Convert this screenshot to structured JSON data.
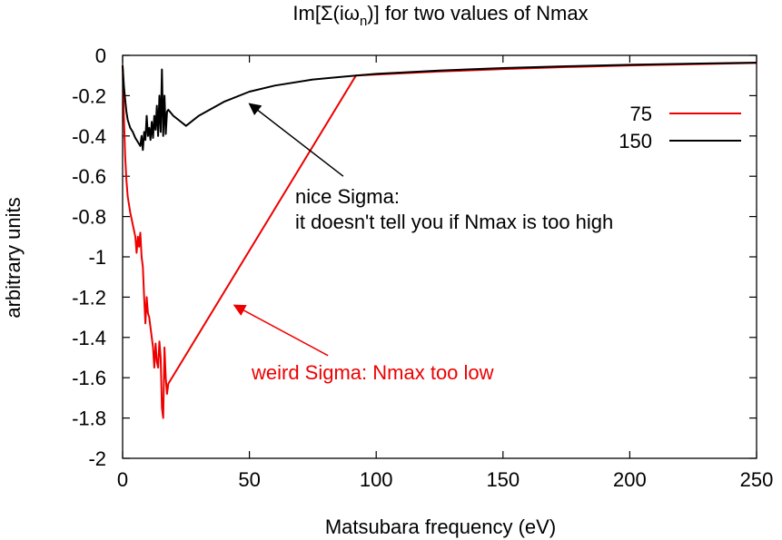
{
  "chart_data": {
    "type": "line",
    "title_prefix": "Im[Σ(iω",
    "title_sub": "n",
    "title_suffix": ")] for two values of Nmax",
    "xlabel": "Matsubara frequency (eV)",
    "ylabel": "arbitrary units",
    "xlim": [
      0,
      250
    ],
    "ylim": [
      -2,
      0
    ],
    "xticks": [
      0,
      50,
      100,
      150,
      200,
      250
    ],
    "yticks": [
      0,
      -0.2,
      -0.4,
      -0.6,
      -0.8,
      -1,
      -1.2,
      -1.4,
      -1.6,
      -1.8,
      -2
    ],
    "grid": false,
    "legend_position": "top-right",
    "series": [
      {
        "name": "75",
        "color": "#ee0000",
        "x": [
          0,
          0.5,
          1,
          1.5,
          2,
          3,
          4,
          5,
          5.5,
          6,
          6.5,
          7,
          7.5,
          8,
          8.5,
          9,
          9.5,
          10,
          10.5,
          11,
          11.5,
          12,
          12.5,
          13,
          13.5,
          14,
          14.5,
          15,
          15.5,
          16,
          16.5,
          17,
          17.5,
          18,
          92,
          100,
          125,
          150,
          175,
          200,
          225,
          250
        ],
        "y": [
          -0.05,
          -0.3,
          -0.5,
          -0.62,
          -0.7,
          -0.78,
          -0.84,
          -0.9,
          -0.98,
          -0.9,
          -0.95,
          -0.88,
          -1.0,
          -1.05,
          -1.2,
          -1.33,
          -1.2,
          -1.28,
          -1.3,
          -1.35,
          -1.4,
          -1.45,
          -1.55,
          -1.43,
          -1.52,
          -1.55,
          -1.42,
          -1.5,
          -1.75,
          -1.8,
          -1.45,
          -1.6,
          -1.68,
          -1.63,
          -0.1,
          -0.095,
          -0.08,
          -0.068,
          -0.058,
          -0.05,
          -0.044,
          -0.038
        ]
      },
      {
        "name": "150",
        "color": "#000000",
        "x": [
          0,
          0.5,
          1,
          1.5,
          2,
          3,
          4,
          5,
          6,
          7,
          7.5,
          8,
          8.5,
          9,
          9.5,
          10,
          10.5,
          11,
          11.5,
          12,
          12.5,
          13,
          13.5,
          14,
          14.5,
          15,
          15.5,
          16,
          16.5,
          17,
          17.5,
          18,
          20,
          22,
          25,
          30,
          40,
          50,
          60,
          75,
          92,
          100,
          125,
          150,
          175,
          200,
          225,
          250
        ],
        "y": [
          -0.05,
          -0.15,
          -0.22,
          -0.28,
          -0.32,
          -0.36,
          -0.38,
          -0.41,
          -0.43,
          -0.45,
          -0.4,
          -0.47,
          -0.38,
          -0.42,
          -0.3,
          -0.4,
          -0.36,
          -0.42,
          -0.33,
          -0.41,
          -0.3,
          -0.37,
          -0.25,
          -0.4,
          -0.2,
          -0.38,
          -0.07,
          -0.4,
          -0.2,
          -0.39,
          -0.28,
          -0.27,
          -0.3,
          -0.32,
          -0.35,
          -0.3,
          -0.23,
          -0.18,
          -0.15,
          -0.12,
          -0.1,
          -0.092,
          -0.075,
          -0.063,
          -0.054,
          -0.047,
          -0.041,
          -0.036
        ]
      }
    ],
    "annotations": [
      {
        "line1": "nice Sigma:",
        "line2": "it doesn't tell you if Nmax is too high",
        "color": "#000000",
        "arrow_from": [
          87,
          -0.6
        ],
        "arrow_to": [
          50,
          -0.24
        ]
      },
      {
        "line1": "weird Sigma: Nmax too low",
        "color": "#ee0000",
        "arrow_from": [
          81,
          -1.49
        ],
        "arrow_to": [
          44,
          -1.24
        ]
      }
    ]
  }
}
